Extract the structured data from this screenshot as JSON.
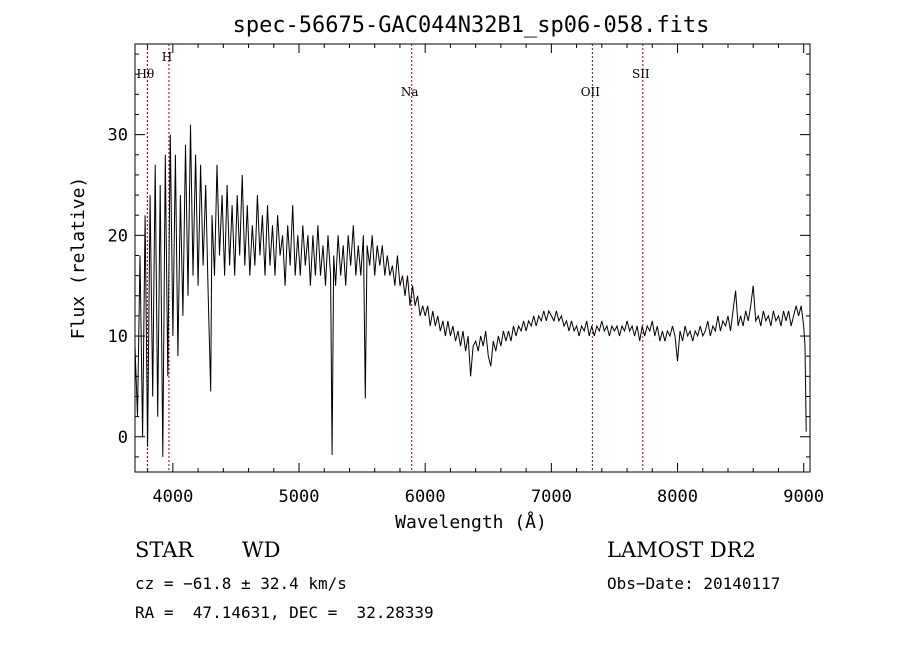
{
  "chart_data": {
    "type": "line",
    "title": "spec-56675-GAC044N32B1_sp06-058.fits",
    "xlabel": "Wavelength (Å)",
    "ylabel": "Flux (relative)",
    "xlim": [
      3700,
      9050
    ],
    "ylim": [
      -3.5,
      39
    ],
    "xticks": [
      4000,
      5000,
      6000,
      7000,
      8000,
      9000
    ],
    "yticks": [
      0,
      10,
      20,
      30
    ],
    "line_color": "#000000",
    "marker_color": "#8b0000",
    "spectral_lines": [
      {
        "label": "Hθ",
        "x": 3798
      },
      {
        "label": "H",
        "x": 3969
      },
      {
        "label": "Na",
        "x": 5893
      },
      {
        "label": "OII",
        "x": 7325
      },
      {
        "label": "SII",
        "x": 7725
      }
    ],
    "series": [
      {
        "values": [
          [
            3700,
            9
          ],
          [
            3720,
            2
          ],
          [
            3740,
            18
          ],
          [
            3760,
            0
          ],
          [
            3780,
            22
          ],
          [
            3800,
            -1
          ],
          [
            3820,
            24
          ],
          [
            3840,
            4
          ],
          [
            3860,
            27
          ],
          [
            3880,
            2
          ],
          [
            3900,
            25
          ],
          [
            3920,
            -2
          ],
          [
            3940,
            28
          ],
          [
            3960,
            6
          ],
          [
            3980,
            30
          ],
          [
            4000,
            10
          ],
          [
            4020,
            28
          ],
          [
            4040,
            8
          ],
          [
            4060,
            24
          ],
          [
            4080,
            12
          ],
          [
            4100,
            29
          ],
          [
            4120,
            14
          ],
          [
            4140,
            31
          ],
          [
            4160,
            16
          ],
          [
            4180,
            28
          ],
          [
            4200,
            15
          ],
          [
            4220,
            27
          ],
          [
            4240,
            17
          ],
          [
            4260,
            25
          ],
          [
            4280,
            14
          ],
          [
            4300,
            4.5
          ],
          [
            4310,
            22
          ],
          [
            4330,
            16
          ],
          [
            4350,
            27
          ],
          [
            4370,
            18
          ],
          [
            4390,
            24
          ],
          [
            4410,
            16
          ],
          [
            4430,
            25
          ],
          [
            4450,
            17
          ],
          [
            4470,
            23
          ],
          [
            4490,
            16
          ],
          [
            4510,
            24
          ],
          [
            4530,
            18
          ],
          [
            4550,
            26
          ],
          [
            4570,
            17
          ],
          [
            4590,
            23
          ],
          [
            4610,
            16
          ],
          [
            4630,
            21
          ],
          [
            4650,
            17
          ],
          [
            4670,
            24
          ],
          [
            4690,
            18
          ],
          [
            4710,
            22
          ],
          [
            4730,
            16
          ],
          [
            4750,
            23
          ],
          [
            4770,
            17
          ],
          [
            4790,
            21
          ],
          [
            4810,
            16
          ],
          [
            4830,
            22
          ],
          [
            4850,
            18
          ],
          [
            4870,
            20
          ],
          [
            4890,
            15
          ],
          [
            4910,
            21
          ],
          [
            4930,
            17
          ],
          [
            4950,
            23
          ],
          [
            4970,
            16
          ],
          [
            4990,
            20
          ],
          [
            5010,
            16
          ],
          [
            5030,
            21
          ],
          [
            5050,
            17
          ],
          [
            5070,
            20
          ],
          [
            5090,
            15
          ],
          [
            5110,
            20
          ],
          [
            5130,
            16
          ],
          [
            5150,
            21
          ],
          [
            5170,
            16
          ],
          [
            5190,
            19
          ],
          [
            5210,
            15
          ],
          [
            5230,
            20
          ],
          [
            5250,
            16
          ],
          [
            5262,
            -1.8
          ],
          [
            5275,
            18
          ],
          [
            5290,
            15
          ],
          [
            5310,
            20
          ],
          [
            5330,
            16
          ],
          [
            5350,
            19
          ],
          [
            5370,
            15
          ],
          [
            5390,
            20
          ],
          [
            5410,
            17
          ],
          [
            5430,
            21
          ],
          [
            5450,
            16
          ],
          [
            5470,
            19
          ],
          [
            5490,
            16
          ],
          [
            5510,
            20
          ],
          [
            5525,
            3.8
          ],
          [
            5540,
            19
          ],
          [
            5560,
            17
          ],
          [
            5580,
            20
          ],
          [
            5600,
            16
          ],
          [
            5620,
            19
          ],
          [
            5640,
            17
          ],
          [
            5660,
            19
          ],
          [
            5680,
            16
          ],
          [
            5700,
            18
          ],
          [
            5720,
            16
          ],
          [
            5740,
            17
          ],
          [
            5760,
            15
          ],
          [
            5780,
            18
          ],
          [
            5800,
            15
          ],
          [
            5820,
            16
          ],
          [
            5840,
            14
          ],
          [
            5860,
            16
          ],
          [
            5880,
            13
          ],
          [
            5900,
            15
          ],
          [
            5920,
            13
          ],
          [
            5940,
            14
          ],
          [
            5960,
            12
          ],
          [
            5980,
            13
          ],
          [
            6000,
            12
          ],
          [
            6020,
            13
          ],
          [
            6040,
            11
          ],
          [
            6060,
            12.5
          ],
          [
            6080,
            11
          ],
          [
            6100,
            12
          ],
          [
            6120,
            10.5
          ],
          [
            6140,
            11.5
          ],
          [
            6160,
            10
          ],
          [
            6180,
            11.5
          ],
          [
            6200,
            10
          ],
          [
            6220,
            11
          ],
          [
            6240,
            9.5
          ],
          [
            6260,
            10.5
          ],
          [
            6280,
            9
          ],
          [
            6300,
            10.5
          ],
          [
            6320,
            8.5
          ],
          [
            6340,
            10
          ],
          [
            6360,
            6
          ],
          [
            6380,
            9
          ],
          [
            6400,
            9.5
          ],
          [
            6420,
            8.5
          ],
          [
            6440,
            10
          ],
          [
            6460,
            9
          ],
          [
            6480,
            10.5
          ],
          [
            6500,
            8
          ],
          [
            6520,
            7
          ],
          [
            6540,
            9.5
          ],
          [
            6560,
            8.5
          ],
          [
            6580,
            10
          ],
          [
            6600,
            9
          ],
          [
            6620,
            10.5
          ],
          [
            6640,
            9.5
          ],
          [
            6660,
            10.5
          ],
          [
            6680,
            9.5
          ],
          [
            6700,
            11
          ],
          [
            6720,
            10
          ],
          [
            6740,
            11
          ],
          [
            6760,
            10.5
          ],
          [
            6780,
            11.5
          ],
          [
            6800,
            10.5
          ],
          [
            6820,
            11.5
          ],
          [
            6840,
            11
          ],
          [
            6860,
            12
          ],
          [
            6880,
            11
          ],
          [
            6900,
            12
          ],
          [
            6920,
            11.5
          ],
          [
            6940,
            12.5
          ],
          [
            6960,
            11.5
          ],
          [
            6980,
            12.5
          ],
          [
            7000,
            12
          ],
          [
            7020,
            11.5
          ],
          [
            7040,
            12.5
          ],
          [
            7060,
            11.5
          ],
          [
            7080,
            12
          ],
          [
            7100,
            11
          ],
          [
            7120,
            11.5
          ],
          [
            7140,
            10.5
          ],
          [
            7160,
            11.5
          ],
          [
            7180,
            10.5
          ],
          [
            7200,
            11
          ],
          [
            7220,
            10
          ],
          [
            7240,
            11
          ],
          [
            7260,
            10.5
          ],
          [
            7280,
            11.5
          ],
          [
            7300,
            10
          ],
          [
            7320,
            11
          ],
          [
            7340,
            10
          ],
          [
            7360,
            11
          ],
          [
            7380,
            10.5
          ],
          [
            7400,
            11.5
          ],
          [
            7420,
            10.5
          ],
          [
            7440,
            11
          ],
          [
            7460,
            10
          ],
          [
            7480,
            11
          ],
          [
            7500,
            10.5
          ],
          [
            7520,
            11
          ],
          [
            7540,
            10
          ],
          [
            7560,
            11
          ],
          [
            7580,
            10.5
          ],
          [
            7600,
            11.5
          ],
          [
            7620,
            10.5
          ],
          [
            7640,
            11
          ],
          [
            7660,
            10
          ],
          [
            7680,
            11
          ],
          [
            7700,
            9.5
          ],
          [
            7720,
            11
          ],
          [
            7740,
            10
          ],
          [
            7760,
            11
          ],
          [
            7780,
            10.5
          ],
          [
            7800,
            11.5
          ],
          [
            7820,
            10
          ],
          [
            7840,
            11
          ],
          [
            7860,
            9.5
          ],
          [
            7880,
            10.5
          ],
          [
            7900,
            9.5
          ],
          [
            7920,
            10.5
          ],
          [
            7940,
            10
          ],
          [
            7960,
            11
          ],
          [
            7980,
            10
          ],
          [
            8000,
            7.5
          ],
          [
            8020,
            10.5
          ],
          [
            8040,
            9.5
          ],
          [
            8060,
            11
          ],
          [
            8080,
            10
          ],
          [
            8100,
            10.5
          ],
          [
            8120,
            9.5
          ],
          [
            8140,
            10.5
          ],
          [
            8160,
            10
          ],
          [
            8180,
            11
          ],
          [
            8200,
            10
          ],
          [
            8220,
            10.5
          ],
          [
            8240,
            11.5
          ],
          [
            8260,
            10
          ],
          [
            8280,
            11
          ],
          [
            8300,
            10.5
          ],
          [
            8320,
            12
          ],
          [
            8340,
            10.5
          ],
          [
            8360,
            11.5
          ],
          [
            8380,
            11
          ],
          [
            8400,
            12
          ],
          [
            8420,
            10.5
          ],
          [
            8440,
            12.5
          ],
          [
            8460,
            14.5
          ],
          [
            8480,
            11
          ],
          [
            8500,
            12
          ],
          [
            8520,
            11
          ],
          [
            8540,
            12.5
          ],
          [
            8560,
            11.5
          ],
          [
            8580,
            13
          ],
          [
            8600,
            15
          ],
          [
            8620,
            11.5
          ],
          [
            8640,
            12
          ],
          [
            8660,
            11
          ],
          [
            8680,
            12.5
          ],
          [
            8700,
            11.5
          ],
          [
            8720,
            12
          ],
          [
            8740,
            11
          ],
          [
            8760,
            12.5
          ],
          [
            8780,
            11.5
          ],
          [
            8800,
            12
          ],
          [
            8820,
            11
          ],
          [
            8840,
            12.5
          ],
          [
            8860,
            11.5
          ],
          [
            8880,
            12.5
          ],
          [
            8900,
            11
          ],
          [
            8920,
            12
          ],
          [
            8940,
            13
          ],
          [
            8960,
            12
          ],
          [
            8980,
            13
          ],
          [
            9000,
            11
          ],
          [
            9010,
            9
          ],
          [
            9020,
            0.5
          ]
        ]
      }
    ]
  },
  "info": {
    "object_class": "STAR",
    "subclass": "WD",
    "survey": "LAMOST DR2",
    "cz": "cz = −61.8 ± 32.4 km/s",
    "obs_date": "Obs−Date: 20140117",
    "coords": "RA =  47.14631, DEC =  32.28339"
  }
}
